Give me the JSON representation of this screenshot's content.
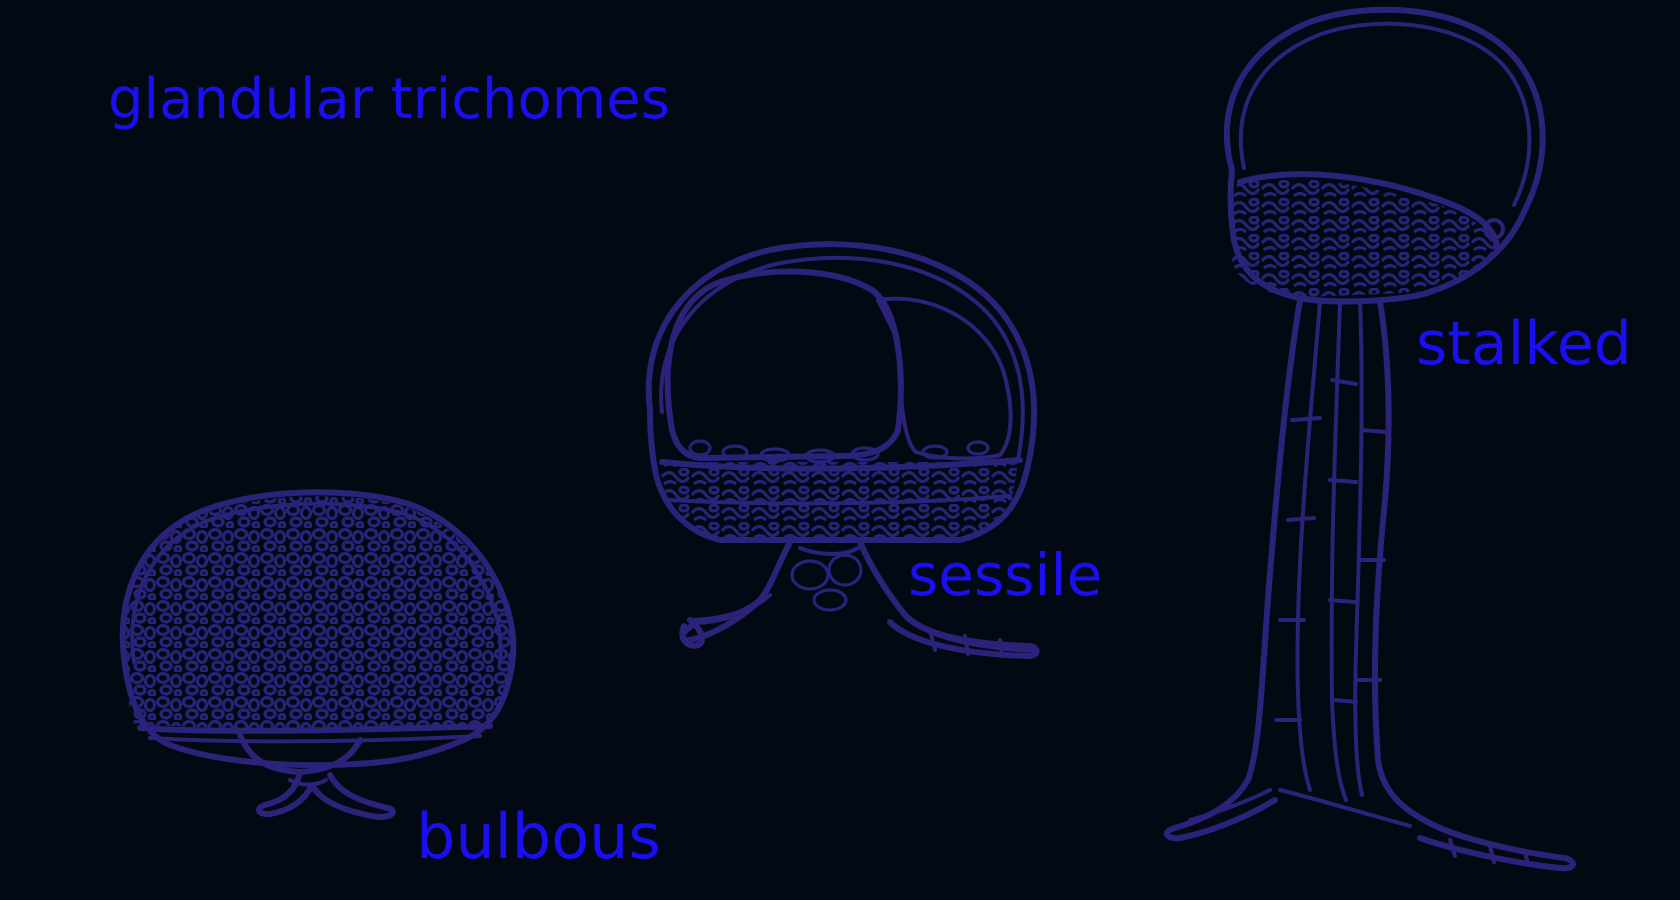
{
  "title": "glandular trichomes",
  "labels": {
    "bulbous": "bulbous",
    "sessile": "sessile",
    "stalked": "stalked"
  },
  "colors": {
    "background": "#030912",
    "text": "#1a0ff0",
    "outline": "#2a2379"
  }
}
